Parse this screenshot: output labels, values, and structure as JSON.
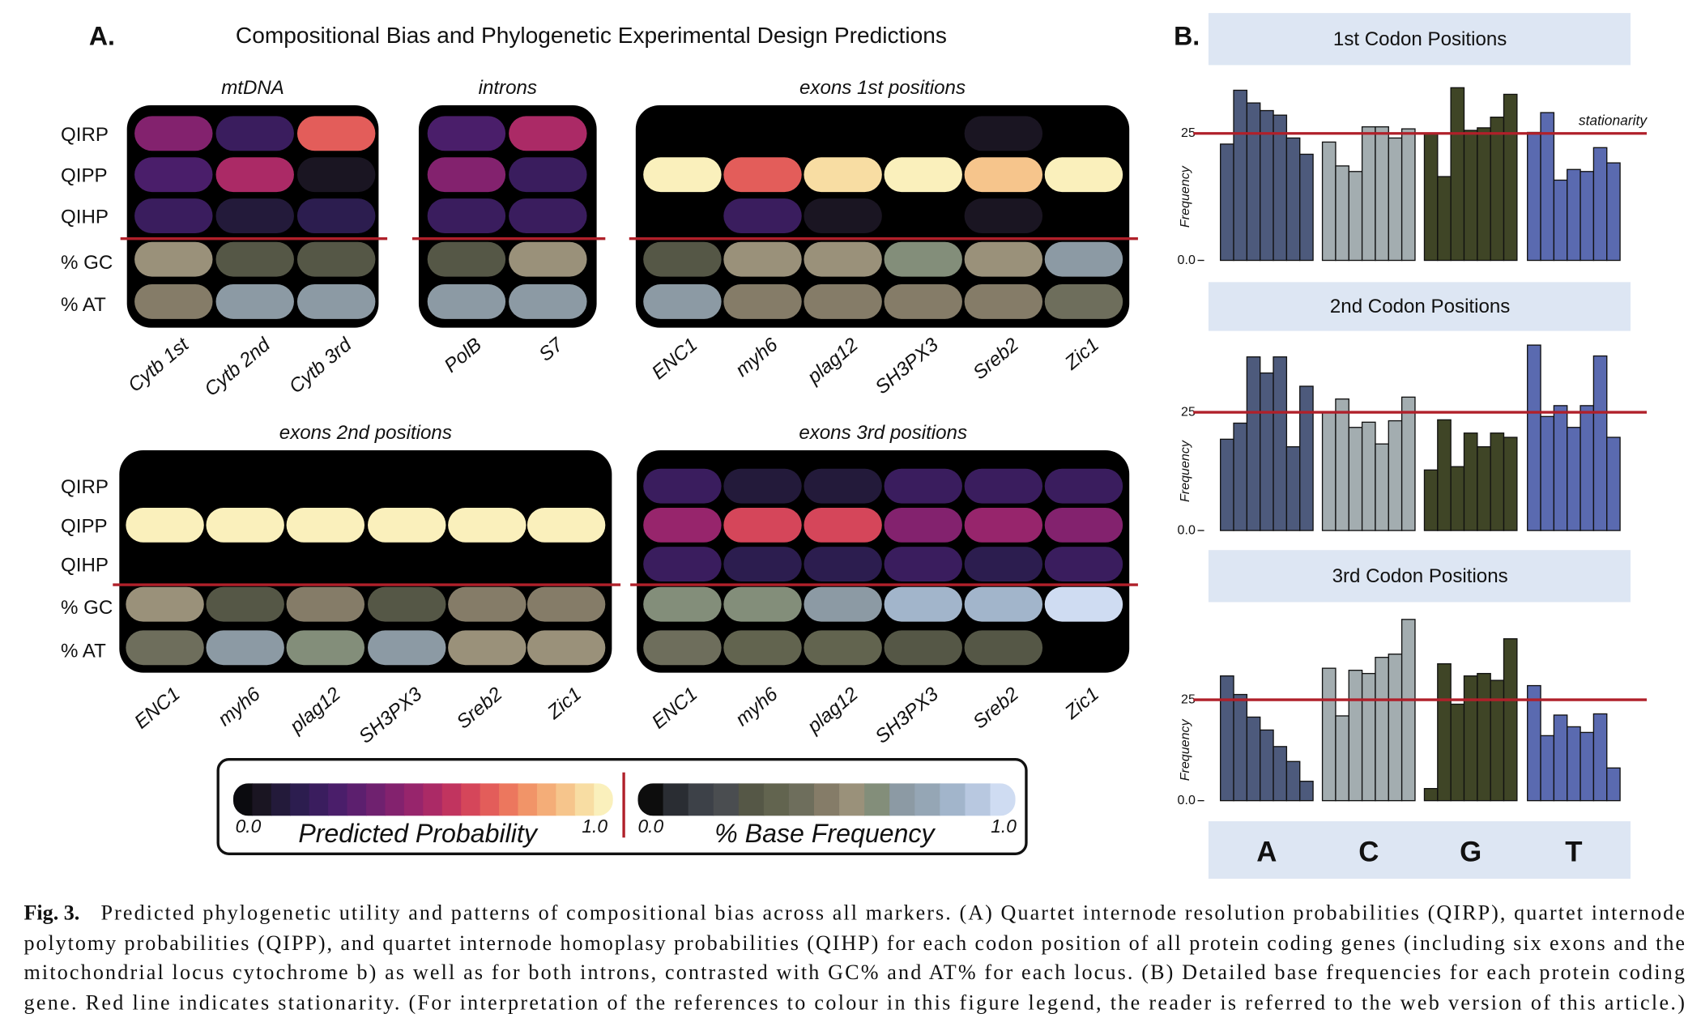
{
  "panel_a": {
    "label": "A.",
    "title": "Compositional Bias and Phylogenetic Experimental Design Predictions",
    "row_labels": [
      "QIRP",
      "QIPP",
      "QIHP",
      "% GC",
      "% AT"
    ],
    "row_scales": [
      "probability",
      "probability",
      "probability",
      "base_frequency",
      "base_frequency"
    ],
    "heatmaps": [
      {
        "title": "mtDNA",
        "columns": [
          "Cytb 1st",
          "Cytb 2nd",
          "Cytb 3rd"
        ],
        "rows": [
          [
            0.43,
            0.2,
            0.66
          ],
          [
            0.25,
            0.53,
            0.07
          ],
          [
            0.2,
            0.12,
            0.17
          ],
          [
            0.57,
            0.3,
            0.3
          ],
          [
            0.5,
            0.7,
            0.7
          ]
        ]
      },
      {
        "title": "introns",
        "columns": [
          "PolB",
          "S7"
        ],
        "rows": [
          [
            0.25,
            0.53
          ],
          [
            0.43,
            0.2
          ],
          [
            0.2,
            0.2
          ],
          [
            0.3,
            0.57
          ],
          [
            0.7,
            0.7
          ]
        ]
      },
      {
        "title": "exons 1st positions",
        "columns": [
          "ENC1",
          "myh6",
          "plag12",
          "SH3PX3",
          "Sreb2",
          "Zic1"
        ],
        "rows": [
          [
            null,
            null,
            null,
            null,
            0.05,
            null
          ],
          [
            0.97,
            0.68,
            0.92,
            0.97,
            0.85,
            0.97
          ],
          [
            null,
            0.2,
            0.05,
            null,
            0.07,
            null
          ],
          [
            0.3,
            0.57,
            0.57,
            0.63,
            0.57,
            0.7
          ],
          [
            0.7,
            0.5,
            0.5,
            0.5,
            0.5,
            0.43
          ]
        ]
      },
      {
        "title": "exons 2nd positions",
        "columns": [
          "ENC1",
          "myh6",
          "plag12",
          "SH3PX3",
          "Sreb2",
          "Zic1"
        ],
        "rows": [
          [
            null,
            null,
            null,
            null,
            null,
            null
          ],
          [
            0.97,
            0.97,
            0.97,
            0.97,
            0.97,
            0.97
          ],
          [
            null,
            null,
            null,
            null,
            null,
            null
          ],
          [
            0.57,
            0.3,
            0.5,
            0.3,
            0.5,
            0.5
          ],
          [
            0.43,
            0.7,
            0.63,
            0.7,
            0.57,
            0.57
          ]
        ]
      },
      {
        "title": "exons 3rd positions",
        "columns": [
          "ENC1",
          "myh6",
          "plag12",
          "SH3PX3",
          "Sreb2",
          "Zic1"
        ],
        "rows": [
          [
            0.2,
            0.12,
            0.12,
            0.2,
            0.2,
            0.22
          ],
          [
            0.48,
            0.63,
            0.6,
            0.43,
            0.48,
            0.43
          ],
          [
            0.2,
            0.17,
            0.17,
            0.2,
            0.17,
            0.2
          ],
          [
            0.63,
            0.63,
            0.7,
            0.84,
            0.84,
            0.95
          ],
          [
            0.43,
            0.37,
            0.37,
            0.3,
            0.3,
            null
          ]
        ]
      }
    ],
    "legend": {
      "probability": {
        "title": "Predicted Probability",
        "min": {
          "value": 0,
          "label": "0.0"
        },
        "max": {
          "value": 1,
          "label": "1.0"
        },
        "colors": [
          "#0b0b0f",
          "#1a1522",
          "#231a3a",
          "#2c1d4f",
          "#3a1d5e",
          "#4a1e6a",
          "#5c1f6e",
          "#6f216f",
          "#83226e",
          "#97256c",
          "#ab2a66",
          "#c1345f",
          "#d5465a",
          "#e35d5a",
          "#ec775e",
          "#f19468",
          "#f4ad78",
          "#f6c58c",
          "#f8dda3",
          "#faf0bc"
        ]
      },
      "base_frequency": {
        "title": "% Base Frequency",
        "min": {
          "value": 0,
          "label": "0.0"
        },
        "max": {
          "value": 1,
          "label": "1.0"
        },
        "colors": [
          "#0d0d0d",
          "#2a2d33",
          "#3d4148",
          "#4a4d50",
          "#555746",
          "#62644f",
          "#6e6e5c",
          "#857c68",
          "#9a917a",
          "#838e7a",
          "#8c9aa4",
          "#95a6b5",
          "#a2b5cb",
          "#b8c8e0",
          "#cfdcf2"
        ]
      }
    }
  },
  "panel_b": {
    "label": "B.",
    "y_label": "Frequency",
    "bases": [
      "A",
      "C",
      "G",
      "T"
    ],
    "colors": [
      "#4d5a7c",
      "#a3adb0",
      "#3f4526",
      "#5a6ab0"
    ],
    "stationarity": {
      "value": 25,
      "label": "stationarity"
    },
    "panels": [
      {
        "type": "bar",
        "title": "1st Codon Positions",
        "ylim": [
          0,
          36
        ],
        "yticks": [
          {
            "value": 0,
            "label": "0.0"
          },
          25
        ],
        "values": [
          [
            22.9,
            33.5,
            31.0,
            29.5,
            28.6,
            24.1,
            20.9
          ],
          [
            23.3,
            18.6,
            17.5,
            26.3,
            26.3,
            24.1,
            25.9
          ],
          [
            25.0,
            16.5,
            34.0,
            25.6,
            26.1,
            28.2,
            32.7
          ],
          [
            25.2,
            29.1,
            15.8,
            17.9,
            17.5,
            22.2,
            19.2
          ]
        ]
      },
      {
        "type": "bar",
        "title": "2nd Codon Positions",
        "ylim": [
          0,
          40
        ],
        "yticks": [
          {
            "value": 0,
            "label": "0.0"
          },
          25
        ],
        "values": [
          [
            19.3,
            22.7,
            36.7,
            33.3,
            36.7,
            17.7,
            30.5
          ],
          [
            25.0,
            27.8,
            21.8,
            22.9,
            18.3,
            23.2,
            28.2
          ],
          [
            12.8,
            23.4,
            13.5,
            20.6,
            17.7,
            20.6,
            19.7
          ],
          [
            39.2,
            24.1,
            26.4,
            21.8,
            26.4,
            36.9,
            19.7
          ]
        ]
      },
      {
        "type": "bar",
        "title": "3rd Codon Positions",
        "ylim": [
          0,
          48
        ],
        "yticks": [
          {
            "value": 0,
            "label": "0.0"
          },
          25
        ],
        "values": [
          [
            30.9,
            26.3,
            20.7,
            17.5,
            13.4,
            9.7,
            4.8
          ],
          [
            32.8,
            21.0,
            32.3,
            31.5,
            35.5,
            36.3,
            44.9
          ],
          [
            3.0,
            33.9,
            23.9,
            30.9,
            31.5,
            29.8,
            40.1
          ],
          [
            28.5,
            16.1,
            21.2,
            18.3,
            16.9,
            21.5,
            8.1
          ]
        ]
      }
    ]
  },
  "caption": {
    "label": "Fig. 3.",
    "lines": [
      "Predicted phylogenetic utility and patterns of compositional bias across all markers. (A) Quartet internode resolution probabilities (QIRP), quartet internode",
      "polytomy probabilities (QIPP), and quartet internode homoplasy probabilities (QIHP) for each codon position of all protein coding genes (including six exons and the",
      "mitochondrial locus cytochrome b) as well as for both introns, contrasted with GC% and AT% for each locus. (B) Detailed base frequencies for each protein coding",
      "gene. Red line indicates stationarity. (For interpretation of the references to colour in this figure legend, the reader is referred to the web version of this article.)"
    ]
  }
}
